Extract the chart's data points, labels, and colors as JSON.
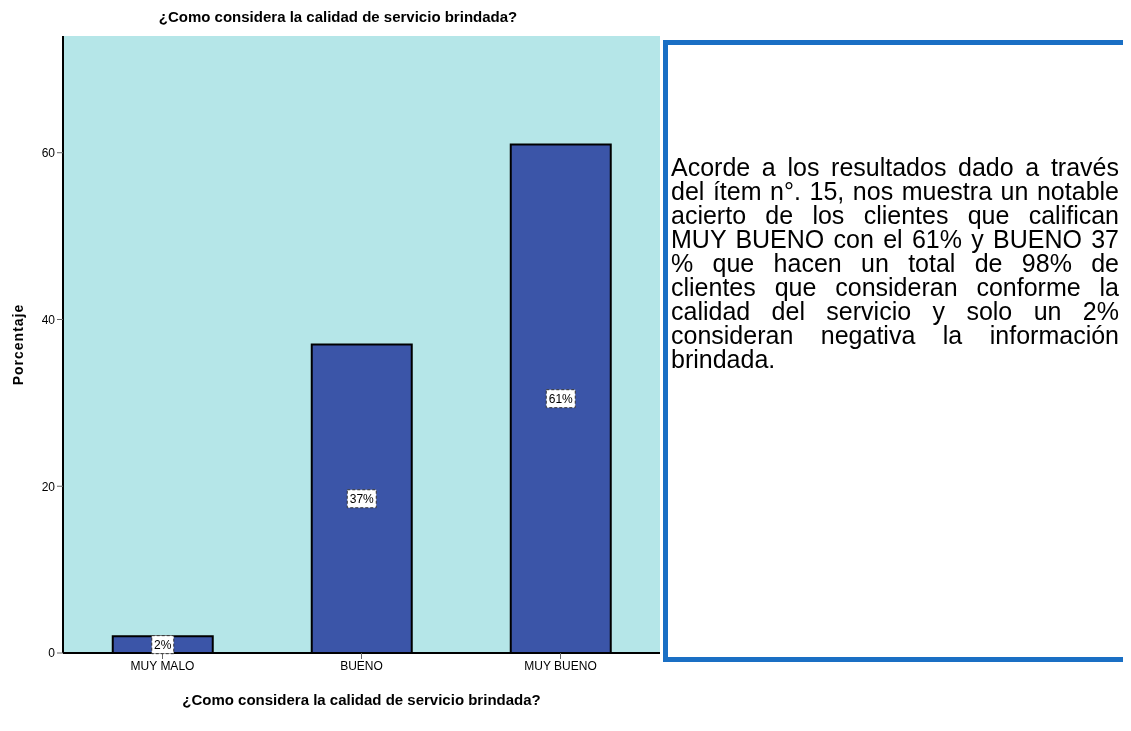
{
  "chart_data": {
    "type": "bar",
    "title": "¿Como considera la calidad de servicio brindada?",
    "xlabel": "¿Como considera la calidad de servicio brindada?",
    "ylabel": "Porcentaje",
    "categories": [
      "MUY MALO",
      "BUENO",
      "MUY BUENO"
    ],
    "values": [
      2,
      37,
      61
    ],
    "value_labels": [
      "2%",
      "37%",
      "61%"
    ],
    "color": "#3b55a8",
    "ylim": [
      0,
      74
    ],
    "yticks": [
      0,
      20,
      40,
      60
    ],
    "grid": false,
    "annotations": [
      "Acorde a los resultados dado a través del ítem n°. 15, nos muestra un notable acierto de los clientes que califican MUY BUENO con el 61% y BUENO 37 % que hacen un total de 98% de clientes que consideran conforme la calidad del servicio y solo un 2% consideran negativa la información brindada."
    ]
  }
}
